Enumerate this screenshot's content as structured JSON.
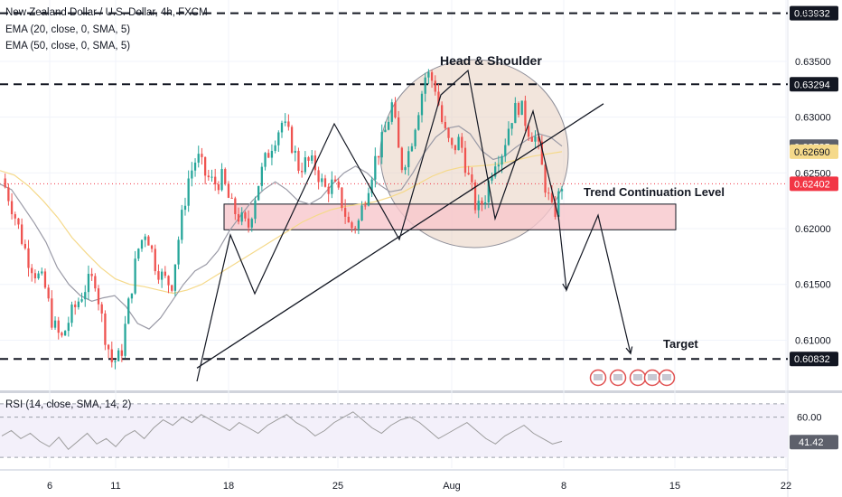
{
  "header": {
    "symbol_line": "New Zealand Dollar / U.S. Dollar, 4h, FXCM",
    "ema20_line": "EMA (20, close, 0, SMA, 5)",
    "ema50_line": "EMA (50, close, 0, SMA, 5)",
    "currency": "USD"
  },
  "rsi_panel": {
    "legend": "RSI (14, close, SMA, 14, 2)",
    "value_label": "41.42",
    "level_label": "60.00"
  },
  "annotations": {
    "pattern_label": "Head & Shoulder",
    "level_label": "Trend Continuation Level",
    "target_label": "Target"
  },
  "colors": {
    "bull": "#26a69a",
    "bear": "#ef5350",
    "ema20": "#9a9aa6",
    "ema50": "#f5d98a",
    "zone_fill": "#f7c7cc",
    "circle_fill": "#e8cfc0",
    "last_price": "#f23645",
    "ema_tag": "#5d606b",
    "ema50_tag": "#f5d98a"
  },
  "chart_data": {
    "type": "candlestick",
    "title": "New Zealand Dollar / U.S. Dollar, 4h, FXCM",
    "y_range": [
      0.6055,
      0.6405
    ],
    "y_ticks": [
      "0.63500",
      "0.63000",
      "0.62500",
      "0.62000",
      "0.61500",
      "0.61000"
    ],
    "x_ticks": [
      "6",
      "11",
      "18",
      "25",
      "Aug",
      "8",
      "15",
      "22"
    ],
    "price_tags": [
      {
        "label": "0.63932",
        "value": 0.63932,
        "style": "dark"
      },
      {
        "label": "0.63294",
        "value": 0.63294,
        "style": "dark"
      },
      {
        "label": "0.62735",
        "value": 0.62735,
        "style": "ema"
      },
      {
        "label": "0.62690",
        "value": 0.6269,
        "style": "ema50"
      },
      {
        "label": "0.62402",
        "value": 0.62402,
        "style": "last"
      },
      {
        "label": "0.60832",
        "value": 0.60832,
        "style": "dark"
      }
    ],
    "dashed_levels": [
      0.63932,
      0.63294,
      0.60832
    ],
    "last_price": 0.62402,
    "resistance_zone": [
      0.6199,
      0.6222
    ],
    "trendline": [
      [
        0.6075,
        0
      ],
      [
        0.6312,
        1
      ]
    ],
    "projection_path": [
      0.6212,
      0.6145,
      0.6212,
      0.6088
    ],
    "price_path": [
      0.6245,
      0.6225,
      0.62,
      0.6175,
      0.616,
      0.615,
      0.6115,
      0.61,
      0.612,
      0.6135,
      0.615,
      0.6155,
      0.611,
      0.608,
      0.6085,
      0.6135,
      0.618,
      0.62,
      0.617,
      0.6155,
      0.615,
      0.62,
      0.6245,
      0.6265,
      0.6248,
      0.624,
      0.6245,
      0.622,
      0.621,
      0.62,
      0.6235,
      0.626,
      0.628,
      0.6295,
      0.628,
      0.6255,
      0.626,
      0.6255,
      0.6235,
      0.624,
      0.6225,
      0.62,
      0.6205,
      0.6235,
      0.6262,
      0.6282,
      0.6312,
      0.6255,
      0.627,
      0.6305,
      0.634,
      0.633,
      0.629,
      0.627,
      0.628,
      0.6245,
      0.6215,
      0.623,
      0.6262,
      0.627,
      0.63,
      0.6312,
      0.629,
      0.628,
      0.624,
      0.621,
      0.624
    ],
    "ema20_path": [
      0.624,
      0.6235,
      0.622,
      0.6205,
      0.6188,
      0.6165,
      0.615,
      0.614,
      0.6135,
      0.6138,
      0.614,
      0.613,
      0.6115,
      0.611,
      0.612,
      0.6135,
      0.615,
      0.6162,
      0.6168,
      0.618,
      0.6198,
      0.6212,
      0.6225,
      0.6235,
      0.6242,
      0.6235,
      0.6225,
      0.6222,
      0.6228,
      0.624,
      0.625,
      0.6256,
      0.625,
      0.624,
      0.6233,
      0.6235,
      0.625,
      0.6268,
      0.6282,
      0.629,
      0.6292,
      0.6285,
      0.627,
      0.6262,
      0.6265,
      0.6273,
      0.628,
      0.6285,
      0.6282,
      0.6274
    ],
    "ema50_path": [
      0.6252,
      0.6248,
      0.6238,
      0.6225,
      0.621,
      0.6192,
      0.6178,
      0.6165,
      0.6155,
      0.615,
      0.6148,
      0.6145,
      0.6142,
      0.6145,
      0.615,
      0.6158,
      0.6166,
      0.6174,
      0.6182,
      0.619,
      0.6198,
      0.6206,
      0.6212,
      0.6217,
      0.622,
      0.6222,
      0.6224,
      0.6228,
      0.6233,
      0.624,
      0.6247,
      0.6252,
      0.6255,
      0.6256,
      0.6257,
      0.6259,
      0.6262,
      0.6265,
      0.6267,
      0.6269
    ],
    "rsi_path": [
      46,
      50,
      44,
      48,
      42,
      38,
      45,
      36,
      42,
      48,
      40,
      44,
      38,
      46,
      50,
      44,
      52,
      58,
      54,
      60,
      56,
      62,
      58,
      54,
      50,
      56,
      52,
      48,
      54,
      58,
      62,
      56,
      52,
      46,
      50,
      56,
      60,
      64,
      58,
      52,
      48,
      54,
      58,
      60,
      56,
      50,
      44,
      48,
      52,
      56,
      50,
      44,
      40,
      46,
      50,
      54,
      48,
      44,
      40,
      42
    ],
    "rsi_range": [
      22,
      78
    ],
    "rsi_levels": [
      70,
      60,
      30
    ],
    "grid": true
  }
}
